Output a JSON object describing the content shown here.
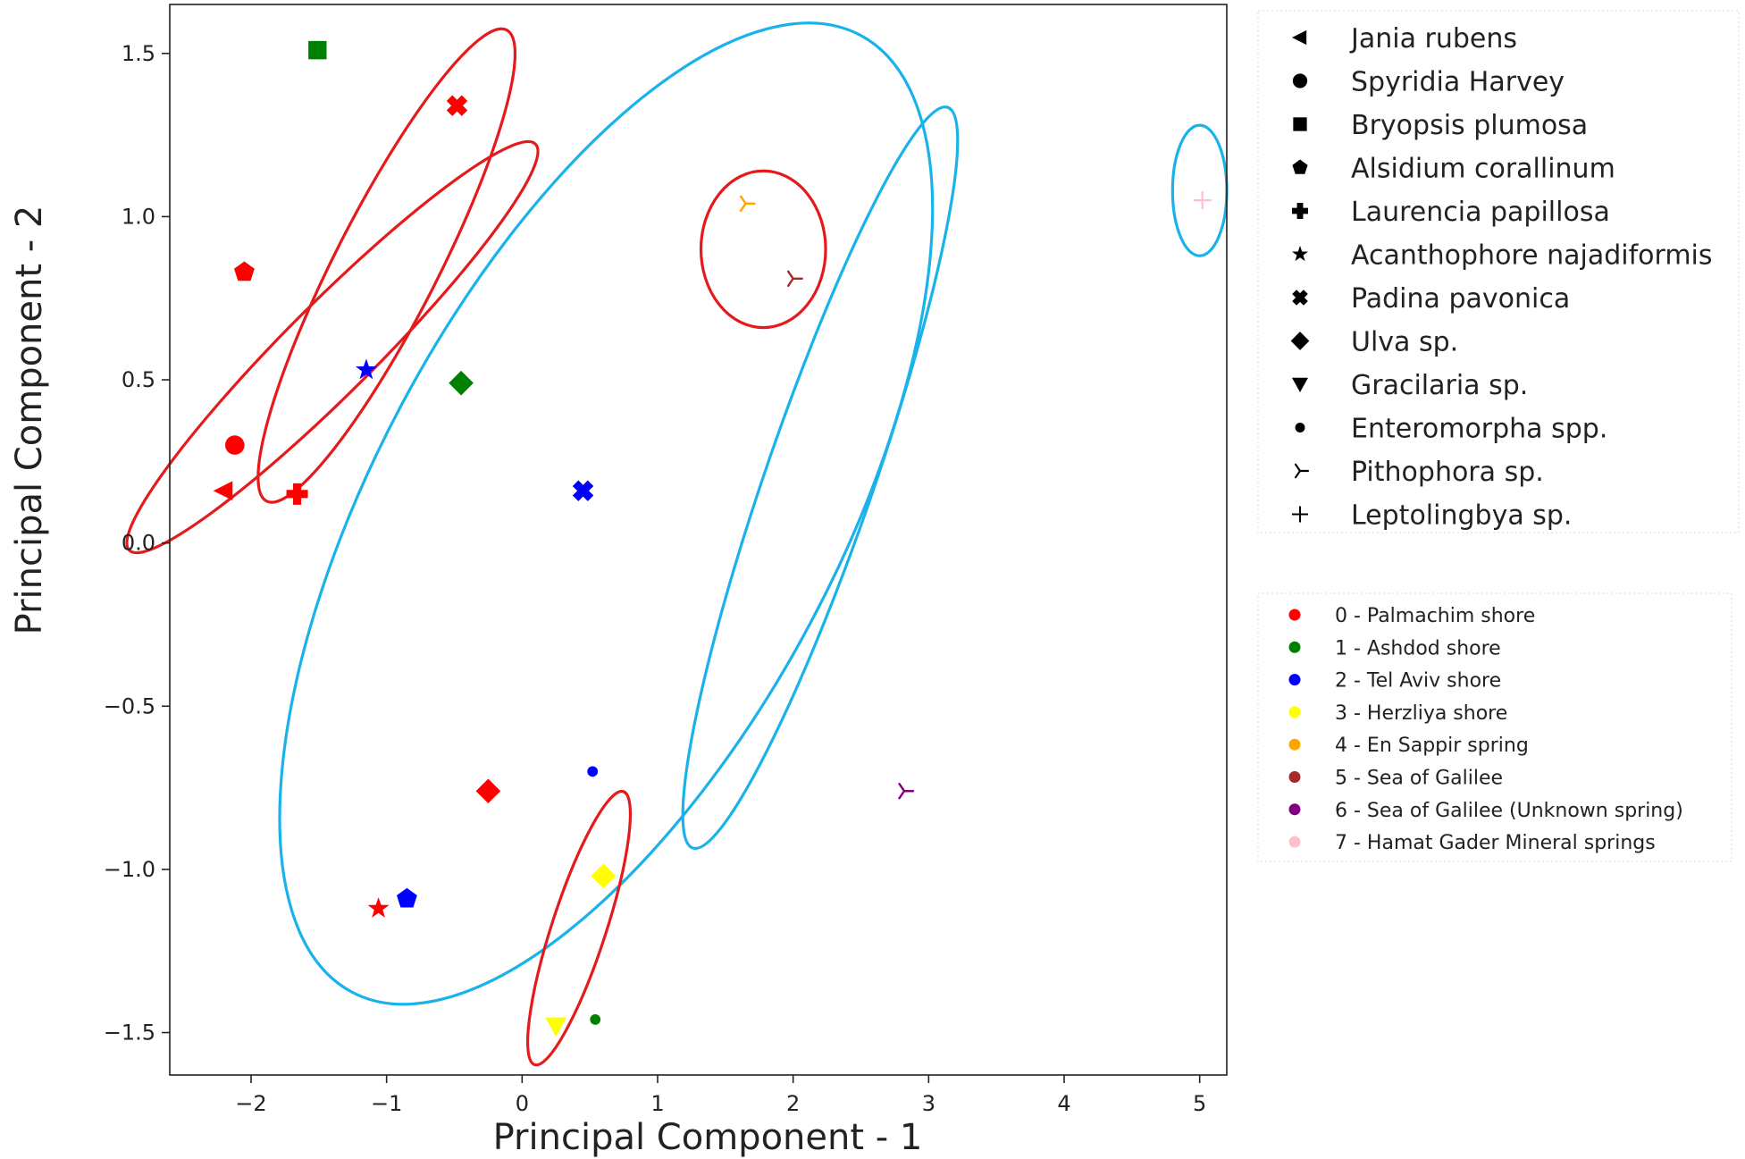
{
  "chart_data": {
    "type": "scatter",
    "xlabel": "Principal Component - 1",
    "ylabel": "Principal Component - 2",
    "xlim": [
      -2.6,
      5.2
    ],
    "ylim": [
      -1.63,
      1.65
    ],
    "xticks": [
      -2,
      -1,
      0,
      1,
      2,
      3,
      4,
      5
    ],
    "xtick_labels": [
      "−2",
      "−1",
      "0",
      "1",
      "2",
      "3",
      "4",
      "5"
    ],
    "yticks": [
      1.5,
      1.0,
      0.5,
      0.0,
      -0.5,
      -1.0,
      -1.5
    ],
    "ytick_labels": [
      "1.5",
      "1.0",
      "0.5",
      "0.0",
      "−0.5",
      "−1.0",
      "−1.5"
    ],
    "grid": false,
    "species_legend": {
      "placement": "upper-right outside",
      "entries": [
        {
          "label": "Jania rubens",
          "marker": "triangle-left"
        },
        {
          "label": "Spyridia Harvey",
          "marker": "circle"
        },
        {
          "label": "Bryopsis plumosa",
          "marker": "square"
        },
        {
          "label": "Alsidium corallinum",
          "marker": "pentagon"
        },
        {
          "label": "Laurencia papillosa",
          "marker": "plus-filled"
        },
        {
          "label": "Acanthophore najadiformis",
          "marker": "star"
        },
        {
          "label": "Padina  pavonica",
          "marker": "x-filled"
        },
        {
          "label": "Ulva sp.",
          "marker": "diamond"
        },
        {
          "label": "Gracilaria sp.",
          "marker": "triangle-down"
        },
        {
          "label": "Enteromorpha spp.",
          "marker": "point"
        },
        {
          "label": "Pithophora sp.",
          "marker": "tri-right"
        },
        {
          "label": "Leptolingbya sp.",
          "marker": "plus"
        }
      ]
    },
    "site_legend": {
      "placement": "middle-right outside",
      "entries": [
        {
          "label": "0 - Palmachim shore",
          "color": "#ff0000"
        },
        {
          "label": "1 - Ashdod shore",
          "color": "#008000"
        },
        {
          "label": "2 - Tel Aviv shore",
          "color": "#0000ff"
        },
        {
          "label": "3 - Herzliya shore",
          "color": "#ffff00"
        },
        {
          "label": "4 - En Sappir spring",
          "color": "#ffa500"
        },
        {
          "label": "5 - Sea of Galilee",
          "color": "#a52a2a"
        },
        {
          "label": "6 - Sea of Galilee (Unknown spring)",
          "color": "#800080"
        },
        {
          "label": "7 - Hamat Gader Mineral springs",
          "color": "#ffc0cb"
        }
      ]
    },
    "points": [
      {
        "species": "Jania rubens",
        "site": 0,
        "x": -2.2,
        "y": 0.16
      },
      {
        "species": "Spyridia Harvey",
        "site": 0,
        "x": -2.12,
        "y": 0.3
      },
      {
        "species": "Bryopsis plumosa",
        "site": 1,
        "x": -1.51,
        "y": 1.51
      },
      {
        "species": "Alsidium corallinum",
        "site": 0,
        "x": -2.05,
        "y": 0.83
      },
      {
        "species": "Alsidium corallinum",
        "site": 2,
        "x": -0.85,
        "y": -1.09
      },
      {
        "species": "Laurencia papillosa",
        "site": 0,
        "x": -1.66,
        "y": 0.15
      },
      {
        "species": "Acanthophore najadiformis",
        "site": 2,
        "x": -1.15,
        "y": 0.53
      },
      {
        "species": "Acanthophore najadiformis",
        "site": 0,
        "x": -1.06,
        "y": -1.12
      },
      {
        "species": "Padina  pavonica",
        "site": 0,
        "x": -0.48,
        "y": 1.34
      },
      {
        "species": "Padina  pavonica",
        "site": 2,
        "x": 0.45,
        "y": 0.16
      },
      {
        "species": "Ulva sp.",
        "site": 1,
        "x": -0.45,
        "y": 0.49
      },
      {
        "species": "Ulva sp.",
        "site": 0,
        "x": -0.25,
        "y": -0.76
      },
      {
        "species": "Ulva sp.",
        "site": 3,
        "x": 0.6,
        "y": -1.02
      },
      {
        "species": "Gracilaria sp.",
        "site": 3,
        "x": 0.25,
        "y": -1.48
      },
      {
        "species": "Enteromorpha spp.",
        "site": 2,
        "x": 0.52,
        "y": -0.7
      },
      {
        "species": "Enteromorpha spp.",
        "site": 1,
        "x": 0.54,
        "y": -1.46
      },
      {
        "species": "Pithophora sp.",
        "site": 4,
        "x": 1.65,
        "y": 1.04
      },
      {
        "species": "Pithophora sp.",
        "site": 5,
        "x": 2.0,
        "y": 0.81
      },
      {
        "species": "Pithophora sp.",
        "site": 6,
        "x": 2.82,
        "y": -0.76
      },
      {
        "species": "Leptolingbya sp.",
        "site": 7,
        "x": 5.02,
        "y": 1.05
      }
    ],
    "ellipses": [
      {
        "color": "#1ab2ea",
        "cx": 0.62,
        "cy": 0.09,
        "rx": 1.71,
        "ry": 1.66,
        "rot": 28
      },
      {
        "color": "#1ab2ea",
        "cx": 2.2,
        "cy": 0.2,
        "rx": 0.4,
        "ry": 1.2,
        "rot": 19
      },
      {
        "color": "#1ab2ea",
        "cx": 5.0,
        "cy": 1.08,
        "rx": 0.2,
        "ry": 0.2,
        "rot": 0
      },
      {
        "color": "#e41a1c",
        "cx": -1.0,
        "cy": 0.85,
        "rx": 0.38,
        "ry": 0.81,
        "rot": 27
      },
      {
        "color": "#e41a1c",
        "cx": -1.4,
        "cy": 0.6,
        "rx": 0.33,
        "ry": 0.88,
        "rot": 45
      },
      {
        "color": "#e41a1c",
        "cx": 1.78,
        "cy": 0.9,
        "rx": 0.46,
        "ry": 0.24,
        "rot": 0
      },
      {
        "color": "#e41a1c",
        "cx": 0.42,
        "cy": -1.18,
        "rx": 0.2,
        "ry": 0.44,
        "rot": 18
      }
    ]
  }
}
